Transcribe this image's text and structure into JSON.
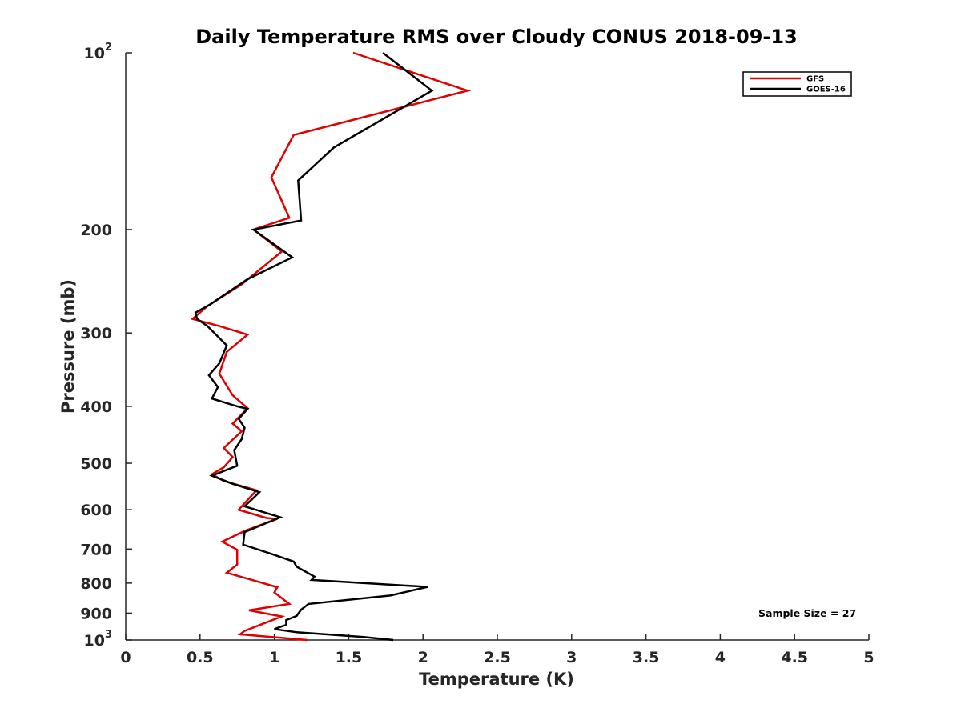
{
  "chart_data": {
    "type": "line",
    "title": "Daily Temperature RMS over Cloudy CONUS 2018-09-13",
    "xlabel": "Temperature (K)",
    "ylabel": "Pressure (mb)",
    "xlim": [
      0,
      5
    ],
    "ylim": [
      100,
      1000
    ],
    "y_scale": "log",
    "y_reversed": true,
    "grid": false,
    "legend_position": "top-right",
    "x_ticks": [
      {
        "value": 0,
        "label": "0"
      },
      {
        "value": 0.5,
        "label": "0.5"
      },
      {
        "value": 1,
        "label": "1"
      },
      {
        "value": 1.5,
        "label": "1.5"
      },
      {
        "value": 2,
        "label": "2"
      },
      {
        "value": 2.5,
        "label": "2.5"
      },
      {
        "value": 3,
        "label": "3"
      },
      {
        "value": 3.5,
        "label": "3.5"
      },
      {
        "value": 4,
        "label": "4"
      },
      {
        "value": 4.5,
        "label": "4.5"
      },
      {
        "value": 5,
        "label": "5"
      }
    ],
    "y_ticks": [
      {
        "value": 100,
        "base": "10",
        "exp": "2"
      },
      {
        "value": 200,
        "label": "200"
      },
      {
        "value": 300,
        "label": "300"
      },
      {
        "value": 400,
        "label": "400"
      },
      {
        "value": 500,
        "label": "500"
      },
      {
        "value": 600,
        "label": "600"
      },
      {
        "value": 700,
        "label": "700"
      },
      {
        "value": 800,
        "label": "800"
      },
      {
        "value": 900,
        "label": "900"
      },
      {
        "value": 1000,
        "base": "10",
        "exp": "3"
      }
    ],
    "series": [
      {
        "name": "GFS",
        "color": "#e00000",
        "points": [
          [
            1.53,
            100
          ],
          [
            2.3,
            116
          ],
          [
            1.13,
            138
          ],
          [
            0.98,
            163
          ],
          [
            1.1,
            191
          ],
          [
            0.86,
            200
          ],
          [
            1.05,
            218
          ],
          [
            0.78,
            248
          ],
          [
            0.55,
            270
          ],
          [
            0.45,
            284
          ],
          [
            0.52,
            287
          ],
          [
            0.63,
            292
          ],
          [
            0.82,
            302
          ],
          [
            0.68,
            323
          ],
          [
            0.63,
            352
          ],
          [
            0.72,
            383
          ],
          [
            0.82,
            403
          ],
          [
            0.72,
            428
          ],
          [
            0.78,
            441
          ],
          [
            0.66,
            471
          ],
          [
            0.72,
            488
          ],
          [
            0.66,
            508
          ],
          [
            0.58,
            522
          ],
          [
            0.66,
            536
          ],
          [
            0.88,
            556
          ],
          [
            0.76,
            600
          ],
          [
            0.95,
            620
          ],
          [
            1.02,
            622
          ],
          [
            0.8,
            652
          ],
          [
            0.65,
            680
          ],
          [
            0.75,
            702
          ],
          [
            0.75,
            744
          ],
          [
            0.68,
            768
          ],
          [
            0.85,
            790
          ],
          [
            1.02,
            813
          ],
          [
            1.0,
            830
          ],
          [
            1.1,
            868
          ],
          [
            0.83,
            890
          ],
          [
            1.05,
            912
          ],
          [
            0.8,
            965
          ],
          [
            0.77,
            978
          ],
          [
            1.22,
            1000
          ]
        ]
      },
      {
        "name": "GOES-16",
        "color": "#000000",
        "points": [
          [
            1.73,
            100
          ],
          [
            2.06,
            116
          ],
          [
            1.4,
            145
          ],
          [
            1.16,
            165
          ],
          [
            1.18,
            193
          ],
          [
            0.86,
            200
          ],
          [
            1.12,
            223
          ],
          [
            0.82,
            243
          ],
          [
            0.57,
            268
          ],
          [
            0.47,
            277
          ],
          [
            0.48,
            284
          ],
          [
            0.55,
            292
          ],
          [
            0.68,
            315
          ],
          [
            0.63,
            338
          ],
          [
            0.56,
            354
          ],
          [
            0.62,
            371
          ],
          [
            0.58,
            388
          ],
          [
            0.75,
            400
          ],
          [
            0.82,
            404
          ],
          [
            0.76,
            420
          ],
          [
            0.8,
            435
          ],
          [
            0.78,
            455
          ],
          [
            0.73,
            475
          ],
          [
            0.75,
            505
          ],
          [
            0.58,
            525
          ],
          [
            0.72,
            542
          ],
          [
            0.9,
            560
          ],
          [
            0.8,
            592
          ],
          [
            1.04,
            618
          ],
          [
            0.8,
            655
          ],
          [
            0.79,
            688
          ],
          [
            0.97,
            712
          ],
          [
            1.13,
            735
          ],
          [
            1.15,
            750
          ],
          [
            1.27,
            780
          ],
          [
            1.25,
            790
          ],
          [
            2.03,
            812
          ],
          [
            1.78,
            840
          ],
          [
            1.23,
            868
          ],
          [
            1.18,
            888
          ],
          [
            1.15,
            910
          ],
          [
            1.08,
            925
          ],
          [
            1.08,
            942
          ],
          [
            1.0,
            958
          ],
          [
            1.15,
            970
          ],
          [
            1.6,
            988
          ],
          [
            1.8,
            1000
          ]
        ]
      }
    ],
    "annotation": "Sample Size = 27"
  }
}
